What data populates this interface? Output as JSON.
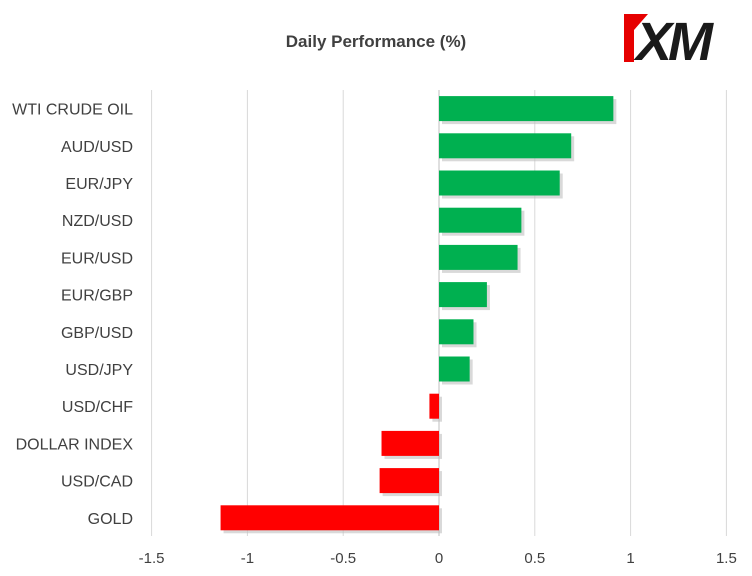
{
  "chart_data": {
    "type": "bar",
    "orientation": "horizontal",
    "title": "Daily Performance (%)",
    "categories": [
      "WTI CRUDE OIL",
      "AUD/USD",
      "EUR/JPY",
      "NZD/USD",
      "EUR/USD",
      "EUR/GBP",
      "GBP/USD",
      "USD/JPY",
      "USD/CHF",
      "DOLLAR INDEX",
      "USD/CAD",
      "GOLD"
    ],
    "values": [
      0.91,
      0.69,
      0.63,
      0.43,
      0.41,
      0.25,
      0.18,
      0.16,
      -0.05,
      -0.3,
      -0.31,
      -1.14
    ],
    "xlim": [
      -1.5,
      1.5
    ],
    "xticks": [
      "-1.5",
      "-1",
      "-0.5",
      "0",
      "0.5",
      "1",
      "1.5"
    ],
    "xtick_values": [
      -1.5,
      -1,
      -0.5,
      0,
      0.5,
      1,
      1.5
    ],
    "grid": "vertical",
    "positive_color": "#00B050",
    "negative_color": "#FF0000"
  },
  "brand": {
    "logo_text": "XM",
    "logo_color": "#1a1a1a",
    "accent_color": "#E60000"
  }
}
